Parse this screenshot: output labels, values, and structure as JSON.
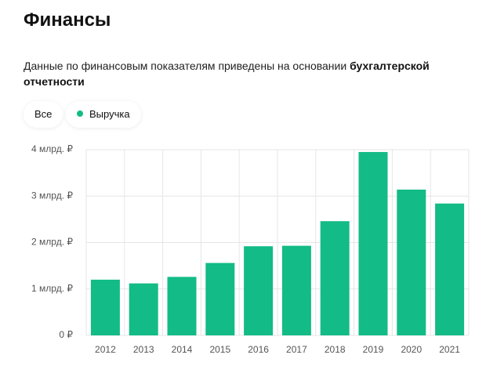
{
  "header": {
    "title": "Финансы"
  },
  "description": {
    "text": "Данные по финансовым показателям приведены на основании",
    "emphasis": "бухгалтерской отчетности"
  },
  "filters": {
    "all": "Все"
  },
  "chart_data": {
    "type": "bar",
    "categories": [
      "2012",
      "2013",
      "2014",
      "2015",
      "2016",
      "2017",
      "2018",
      "2019",
      "2020",
      "2021"
    ],
    "series": [
      {
        "name": "Выручка",
        "color": "#13bb86",
        "values": [
          1.2,
          1.12,
          1.26,
          1.56,
          1.92,
          1.93,
          2.46,
          3.95,
          3.14,
          2.84
        ]
      }
    ],
    "ylim": [
      0,
      4
    ],
    "yticks": [
      {
        "value": 0,
        "label": "0 ₽"
      },
      {
        "value": 1,
        "label": "1 млрд. ₽"
      },
      {
        "value": 2,
        "label": "2 млрд. ₽"
      },
      {
        "value": 3,
        "label": "3 млрд. ₽"
      },
      {
        "value": 4,
        "label": "4 млрд. ₽"
      }
    ],
    "grid": true
  }
}
